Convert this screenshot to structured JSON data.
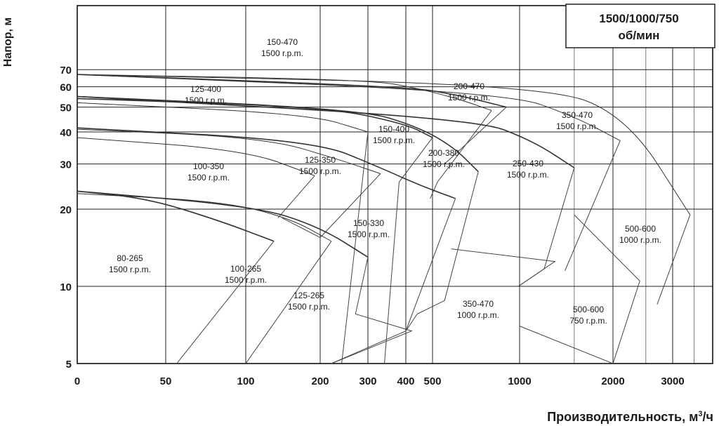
{
  "chart_data": {
    "type": "line",
    "title": "1500/1000/750\nоб/мин",
    "title_lines": [
      "1500/1000/750",
      "об/мин"
    ],
    "xlabel": "Производительность, м",
    "xlabel_sup": "3",
    "xlabel_tail": "/ч",
    "ylabel": "Напор, м",
    "x_scale": "log",
    "y_scale": "log",
    "xlim": [
      0,
      4000
    ],
    "ylim": [
      5,
      70
    ],
    "x_ticks": [
      "0",
      "50",
      "100",
      "200",
      "300",
      "400",
      "500",
      "1000",
      "2000",
      "3000"
    ],
    "y_ticks": [
      "5",
      "10",
      "20",
      "30",
      "40",
      "50",
      "60",
      "70"
    ],
    "grid": true,
    "legend": "top-right",
    "series": [
      {
        "name": "80-265",
        "speed": "1500 r.p.m.",
        "head_curve": [
          [
            0,
            23.5
          ],
          [
            40,
            22
          ],
          [
            80,
            18
          ],
          [
            130,
            15
          ]
        ],
        "field": [
          [
            0,
            23.5
          ],
          [
            130,
            15
          ],
          [
            55,
            5
          ]
        ]
      },
      {
        "name": "100-265",
        "speed": "1500 r.p.m.",
        "head_curve": [
          [
            0,
            23
          ],
          [
            80,
            21.5
          ],
          [
            150,
            18.5
          ],
          [
            220,
            15
          ]
        ],
        "field": [
          [
            0,
            23
          ],
          [
            220,
            15
          ],
          [
            100,
            5
          ]
        ]
      },
      {
        "name": "125-265",
        "speed": "1500 r.p.m.",
        "head_curve": [
          [
            0,
            23.5
          ],
          [
            110,
            20.5
          ],
          [
            200,
            17
          ],
          [
            300,
            13
          ]
        ],
        "field": [
          [
            0,
            23.5
          ],
          [
            300,
            13
          ],
          [
            270,
            7.8
          ],
          [
            420,
            6.7
          ],
          [
            220,
            5
          ]
        ]
      },
      {
        "name": "100-350",
        "speed": "1500 r.p.m.",
        "head_curve": [
          [
            0,
            38
          ],
          [
            100,
            34
          ],
          [
            190,
            27
          ]
        ],
        "field": [
          [
            0,
            38
          ],
          [
            190,
            27
          ],
          [
            135,
            18.5
          ]
        ]
      },
      {
        "name": "125-350",
        "speed": "1500 r.p.m.",
        "head_curve": [
          [
            0,
            41
          ],
          [
            120,
            38
          ],
          [
            240,
            31
          ],
          [
            330,
            27.5
          ]
        ],
        "field": [
          [
            0,
            41
          ],
          [
            330,
            27.5
          ],
          [
            200,
            15.5
          ],
          [
            140,
            18.5
          ]
        ]
      },
      {
        "name": "150-330",
        "speed": "1500 r.p.m.",
        "head_curve": [
          [
            0,
            41.5
          ],
          [
            190,
            37
          ],
          [
            330,
            29
          ],
          [
            440,
            25
          ],
          [
            600,
            22
          ]
        ],
        "field": [
          [
            0,
            41.5
          ],
          [
            600,
            22
          ],
          [
            400,
            6.7
          ],
          [
            220,
            5
          ]
        ]
      },
      {
        "name": "125-400",
        "speed": "1500 r.p.m.",
        "head_curve": [
          [
            0,
            52
          ],
          [
            180,
            47
          ],
          [
            300,
            40
          ]
        ],
        "field": [
          [
            0,
            52
          ],
          [
            300,
            40
          ],
          [
            240,
            5
          ]
        ]
      },
      {
        "name": "150-400",
        "speed": "1500 r.p.m.",
        "head_curve": [
          [
            0,
            54
          ],
          [
            210,
            50
          ],
          [
            400,
            43
          ],
          [
            500,
            38
          ]
        ],
        "field": [
          [
            0,
            54
          ],
          [
            500,
            38
          ],
          [
            380,
            25.5
          ],
          [
            340,
            5
          ]
        ]
      },
      {
        "name": "200-380",
        "speed": "1500 r.p.m.",
        "head_curve": [
          [
            0,
            55
          ],
          [
            280,
            49
          ],
          [
            440,
            42
          ],
          [
            590,
            35
          ],
          [
            720,
            28
          ]
        ],
        "field": [
          [
            0,
            55
          ],
          [
            720,
            28
          ],
          [
            550,
            8.8
          ],
          [
            440,
            7.8
          ],
          [
            400,
            6.7
          ]
        ]
      },
      {
        "name": "150-470",
        "speed": "1500 r.p.m.",
        "head_curve": [
          [
            0,
            67
          ],
          [
            300,
            64
          ],
          [
            450,
            59
          ],
          [
            640,
            53
          ],
          [
            800,
            48.5
          ]
        ],
        "field": [
          [
            0,
            67
          ],
          [
            800,
            48.5
          ],
          [
            520,
            25.5
          ],
          [
            490,
            22
          ]
        ]
      },
      {
        "name": "200-470",
        "speed": "1500 r.p.m.",
        "head_curve": [
          [
            0,
            67
          ],
          [
            400,
            60
          ],
          [
            600,
            56
          ],
          [
            900,
            50
          ]
        ],
        "field": [
          [
            0,
            67
          ],
          [
            900,
            50
          ],
          [
            550,
            30
          ]
        ]
      },
      {
        "name": "250-430",
        "speed": "1500 r.p.m.",
        "head_curve": [
          [
            0,
            55
          ],
          [
            700,
            45
          ],
          [
            1100,
            37
          ],
          [
            1500,
            29
          ]
        ],
        "field": [
          [
            0,
            55
          ],
          [
            1500,
            29
          ],
          [
            1200,
            11.7
          ],
          [
            990,
            10
          ]
        ]
      },
      {
        "name": "350-470",
        "speed": "1500 r.p.m.",
        "head_curve": [
          [
            0,
            67
          ],
          [
            900,
            57
          ],
          [
            1500,
            46
          ],
          [
            2100,
            37
          ]
        ],
        "field": [
          [
            0,
            67
          ],
          [
            2100,
            37
          ],
          [
            1400,
            11.5
          ]
        ]
      },
      {
        "name": "500-600",
        "speed": "1000 r.p.m.",
        "head_curve": [
          [
            0,
            67
          ],
          [
            1200,
            61
          ],
          [
            2200,
            46
          ],
          [
            3400,
            19
          ]
        ],
        "field": [
          [
            0,
            67
          ],
          [
            3400,
            19
          ],
          [
            2700,
            8.5
          ]
        ]
      },
      {
        "name": "350-470",
        "speed": "1000 r.p.m.",
        "head_curve": [
          [
            0,
            67
          ],
          [
            1000,
            15
          ],
          [
            1300,
            12.5
          ]
        ],
        "field": [
          [
            580,
            14
          ],
          [
            1300,
            12.5
          ],
          [
            990,
            10
          ]
        ]
      },
      {
        "name": "500-600",
        "speed": "750 r.p.m.",
        "head_curve": [
          [
            1500,
            19
          ],
          [
            2400,
            10.5
          ]
        ],
        "field": [
          [
            1500,
            19
          ],
          [
            2400,
            10.5
          ],
          [
            2000,
            5
          ],
          [
            1000,
            7
          ]
        ]
      }
    ],
    "label_positions_note": ""
  }
}
